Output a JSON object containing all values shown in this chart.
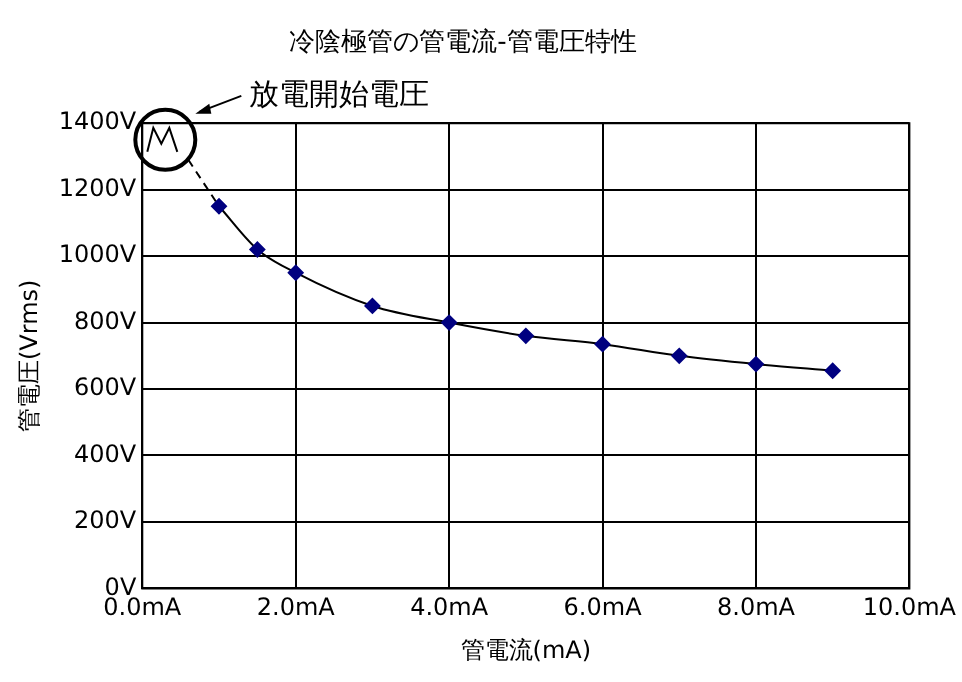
{
  "chart_data": {
    "type": "line",
    "title": "冷陰極管の管電流-管電圧特性",
    "xlabel": "管電流(mA)",
    "ylabel": "管電圧(Vrms)",
    "series": [
      {
        "color": "#000080",
        "x": [
          1,
          1.5,
          2,
          3,
          4,
          5,
          6,
          7,
          8,
          9
        ],
        "values": [
          1150,
          1020,
          950,
          850,
          800,
          760,
          735,
          700,
          675,
          655
        ],
        "marker": "diamond",
        "line_style": "solid"
      },
      {
        "type": "line",
        "color": "#000000",
        "x": [
          0.6,
          1
        ],
        "values": [
          1290,
          1150
        ],
        "marker": "none",
        "line_style": "dashed"
      }
    ],
    "xlim": [
      0,
      10
    ],
    "xticks": [
      {
        "value": 0,
        "label": "0.0mA"
      },
      {
        "value": 2,
        "label": "2.0mA"
      },
      {
        "value": 4,
        "label": "4.0mA"
      },
      {
        "value": 6,
        "label": "6.0mA"
      },
      {
        "value": 8,
        "label": "8.0mA"
      },
      {
        "value": 10,
        "label": "10.0mA"
      }
    ],
    "ylim": [
      0,
      1400
    ],
    "yticks": [
      {
        "value": 0,
        "label": "0V"
      },
      {
        "value": 200,
        "label": "200V"
      },
      {
        "value": 400,
        "label": "400V"
      },
      {
        "value": 600,
        "label": "600V"
      },
      {
        "value": 800,
        "label": "800V"
      },
      {
        "value": 1000,
        "label": "1000V"
      },
      {
        "value": 1200,
        "label": "1200V"
      },
      {
        "value": 1400,
        "label": "1400V"
      }
    ],
    "grid": true,
    "legend": false,
    "annotations": [
      {
        "text": "放電開始電圧",
        "x": 0.3,
        "y": 1350
      }
    ]
  }
}
